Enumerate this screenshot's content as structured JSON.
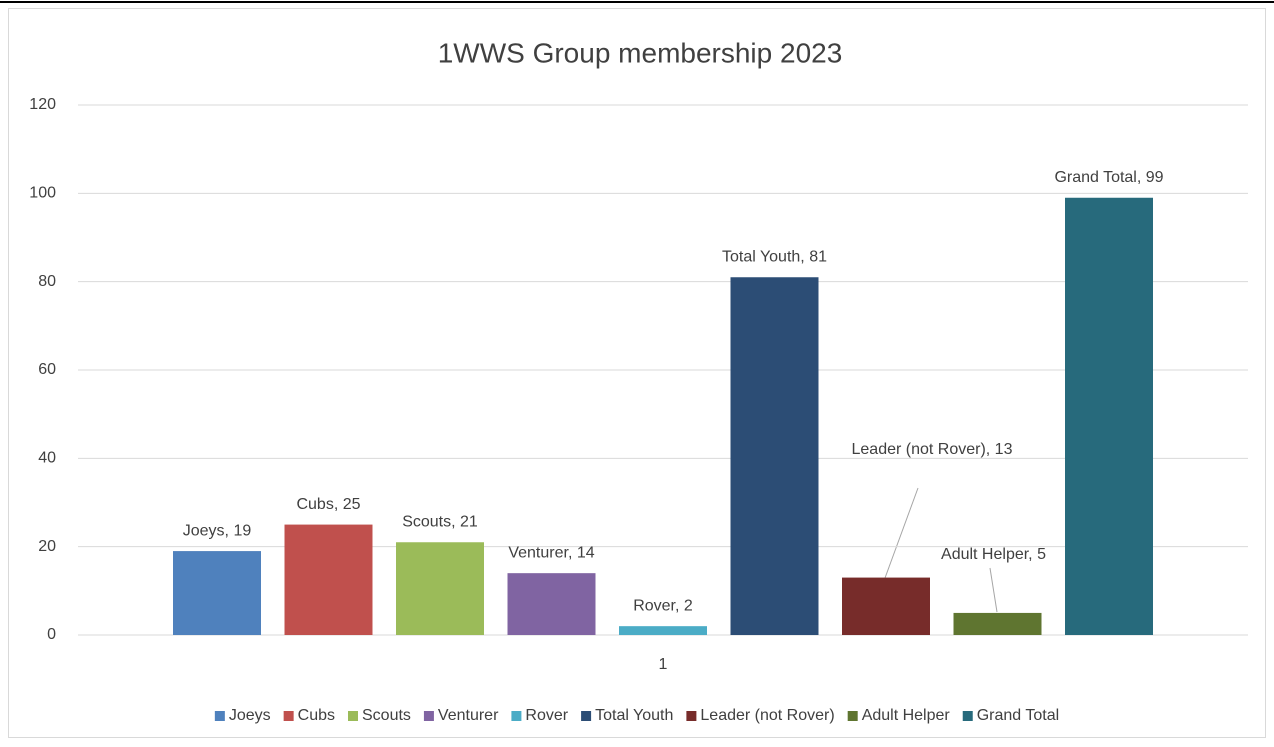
{
  "chart_data": {
    "type": "bar",
    "title": "1WWS Group membership 2023",
    "categories": [
      "1"
    ],
    "series": [
      {
        "name": "Joeys",
        "color": "#4f81bd",
        "values": [
          19
        ],
        "value_labels": [
          "Joeys, 19"
        ]
      },
      {
        "name": "Cubs",
        "color": "#c0504d",
        "values": [
          25
        ],
        "value_labels": [
          "Cubs, 25"
        ]
      },
      {
        "name": "Scouts",
        "color": "#9bbb59",
        "values": [
          21
        ],
        "value_labels": [
          "Scouts, 21"
        ]
      },
      {
        "name": "Venturer",
        "color": "#8064a2",
        "values": [
          14
        ],
        "value_labels": [
          "Venturer, 14"
        ]
      },
      {
        "name": "Rover",
        "color": "#4bacc6",
        "values": [
          2
        ],
        "value_labels": [
          "Rover, 2"
        ]
      },
      {
        "name": "Total Youth",
        "color": "#2c4d75",
        "values": [
          81
        ],
        "value_labels": [
          "Total Youth, 81"
        ]
      },
      {
        "name": "Leader (not Rover)",
        "color": "#772c2a",
        "values": [
          13
        ],
        "value_labels": [
          "Leader (not Rover), 13"
        ]
      },
      {
        "name": "Adult Helper",
        "color": "#5f7530",
        "values": [
          5
        ],
        "value_labels": [
          "Adult Helper, 5"
        ]
      },
      {
        "name": "Grand Total",
        "color": "#276a7c",
        "values": [
          99
        ],
        "value_labels": [
          "Grand Total, 99"
        ]
      }
    ],
    "ylim": [
      0,
      120
    ],
    "yticks": [
      0,
      20,
      40,
      60,
      80,
      100,
      120
    ],
    "grid": true,
    "legend": "bottom"
  }
}
